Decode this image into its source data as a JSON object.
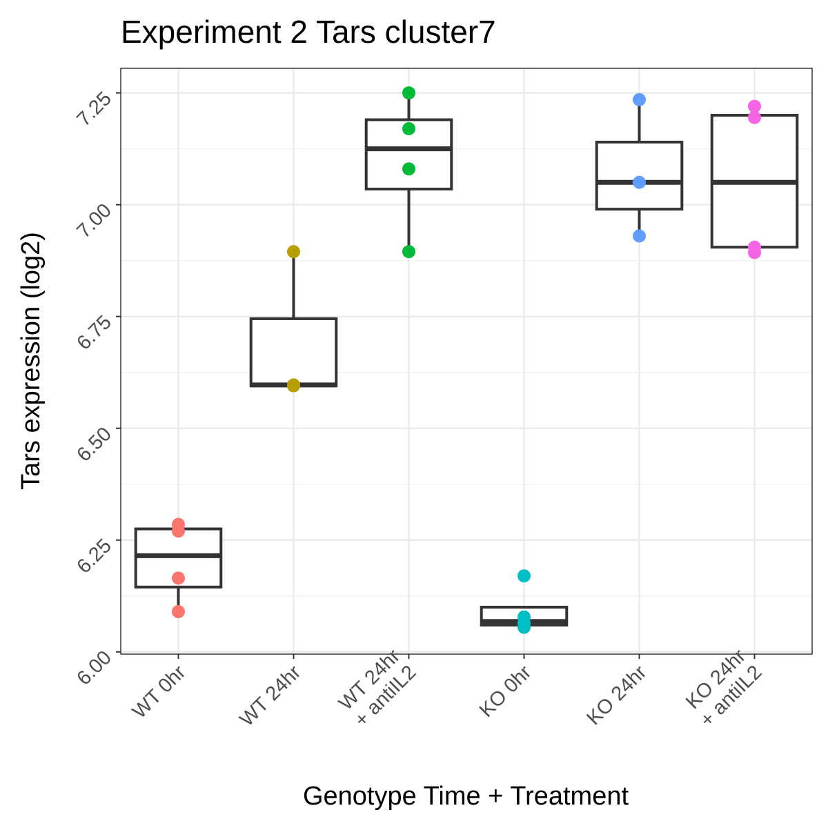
{
  "chart_data": {
    "type": "box",
    "title": "Experiment 2 Tars cluster7",
    "xlabel": "Genotype Time + Treatment",
    "ylabel": "Tars expression (log2)",
    "ylim": [
      5.995,
      7.305
    ],
    "yticks": [
      "6.00",
      "6.25",
      "6.50",
      "6.75",
      "7.00",
      "7.25"
    ],
    "ytick_values": [
      6.0,
      6.25,
      6.5,
      6.75,
      7.0,
      7.25
    ],
    "grid": true,
    "legend": "none",
    "categories": [
      {
        "label": [
          "WT 0hr"
        ],
        "color": "#F8766D",
        "box": {
          "lower_whisker": 6.09,
          "q1": 6.145,
          "median": 6.215,
          "q3": 6.275,
          "upper_whisker": 6.285
        },
        "points": [
          6.285,
          6.27,
          6.165,
          6.09
        ]
      },
      {
        "label": [
          "WT 24hr"
        ],
        "color": "#B79F00",
        "box": {
          "lower_whisker": 6.595,
          "q1": 6.595,
          "median": 6.597,
          "q3": 6.745,
          "upper_whisker": 6.895
        },
        "points": [
          6.895,
          6.597,
          6.595
        ]
      },
      {
        "label": [
          "WT 24hr",
          "+ antiIL2"
        ],
        "color": "#00BA38",
        "box": {
          "lower_whisker": 6.895,
          "q1": 7.035,
          "median": 7.125,
          "q3": 7.19,
          "upper_whisker": 7.25
        },
        "points": [
          7.25,
          7.17,
          7.08,
          6.895
        ]
      },
      {
        "label": [
          "KO 0hr"
        ],
        "color": "#00BFC4",
        "box": {
          "lower_whisker": 6.06,
          "q1": 6.06,
          "median": 6.068,
          "q3": 6.1,
          "upper_whisker": 6.1
        },
        "points": [
          6.17,
          6.078,
          6.065,
          6.055
        ]
      },
      {
        "label": [
          "KO 24hr"
        ],
        "color": "#619CFF",
        "box": {
          "lower_whisker": 6.93,
          "q1": 6.99,
          "median": 7.05,
          "q3": 7.14,
          "upper_whisker": 7.235
        },
        "points": [
          7.235,
          7.05,
          6.93
        ]
      },
      {
        "label": [
          "KO 24hr",
          "+ antiIL2"
        ],
        "color": "#F564E3",
        "box": {
          "lower_whisker": 6.905,
          "q1": 6.905,
          "median": 7.05,
          "q3": 7.2,
          "upper_whisker": 7.2
        },
        "points": [
          7.22,
          7.195,
          6.905,
          6.893
        ]
      }
    ],
    "colors": {
      "panel_border": "#333333",
      "grid_major": "#ebebeb",
      "grid_minor": "#f2f2f2",
      "box_stroke": "#333333",
      "tick_text": "#4d4d4d"
    }
  }
}
